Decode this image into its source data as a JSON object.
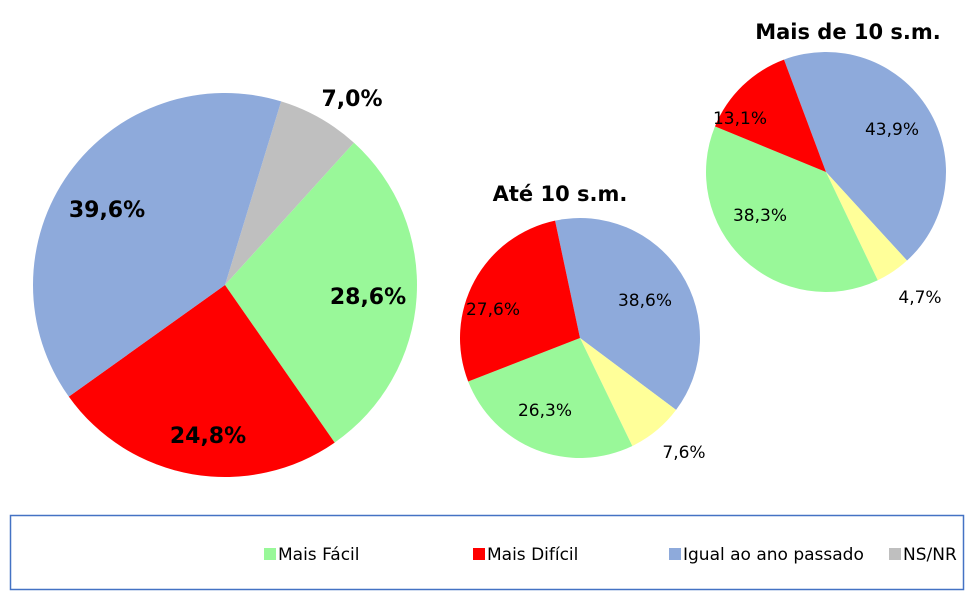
{
  "chart_data": [
    {
      "type": "pie",
      "values": [
        7.0,
        28.6,
        24.8,
        39.6
      ],
      "value_labels": [
        "7,0%",
        "28,6%",
        "24,8%",
        "39,6%"
      ],
      "colors": [
        "#bfbfbf",
        "#99f899",
        "#ff0000",
        "#8eaadb"
      ]
    },
    {
      "type": "pie",
      "title": "Até 10 s.m.",
      "values": [
        38.6,
        7.6,
        26.3,
        27.6
      ],
      "value_labels": [
        "38,6%",
        "7,6%",
        "26,3%",
        "27,6%"
      ],
      "colors": [
        "#8eaadb",
        "#ffff99",
        "#99f899",
        "#ff0000"
      ]
    },
    {
      "type": "pie",
      "title": "Mais de 10 s.m.",
      "values": [
        43.9,
        4.7,
        38.3,
        13.1
      ],
      "value_labels": [
        "43,9%",
        "4,7%",
        "38,3%",
        "13,1%"
      ],
      "colors": [
        "#8eaadb",
        "#ffff99",
        "#99f899",
        "#ff0000"
      ]
    }
  ],
  "legend": [
    {
      "name": "Mais Fácil",
      "color": "#99f899"
    },
    {
      "name": "Mais Difícil",
      "color": "#ff0000"
    },
    {
      "name": "Igual ao ano passado",
      "color": "#8eaadb"
    },
    {
      "name": "NS/NR",
      "color": "#bfbfbf"
    }
  ]
}
